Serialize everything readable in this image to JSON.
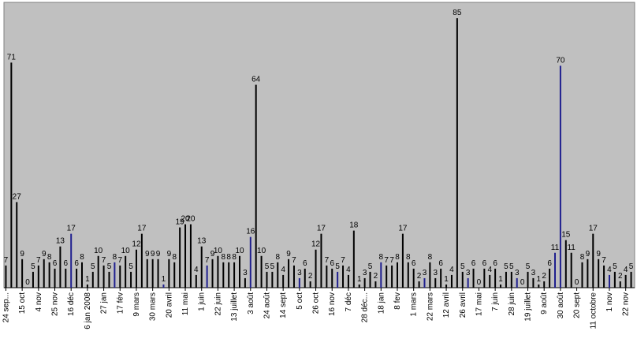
{
  "chart_data": {
    "type": "bar",
    "categories": [
      "24 sep...",
      null,
      null,
      "15 oct",
      null,
      null,
      "4 nov",
      null,
      null,
      "25 nov",
      null,
      null,
      "16 déc",
      null,
      null,
      "6 jan 2008",
      null,
      null,
      "27 jan",
      null,
      null,
      "17 fév",
      null,
      null,
      "9 mars",
      null,
      null,
      "30 mars",
      null,
      null,
      "20 avril",
      null,
      null,
      "11 mai",
      null,
      null,
      "1 juin",
      null,
      null,
      "22 juin",
      null,
      null,
      "13 juillet",
      null,
      null,
      "3 août",
      null,
      null,
      "24 août",
      null,
      null,
      "14 sept",
      null,
      null,
      "5 oct",
      null,
      null,
      "26 oct",
      null,
      null,
      "16 nov",
      null,
      null,
      "7 déc",
      null,
      null,
      "28 déc...",
      null,
      null,
      "18 jan",
      null,
      null,
      "8 fev",
      null,
      null,
      "1 mars",
      null,
      null,
      "22 mars",
      null,
      null,
      "12 avril",
      null,
      null,
      "26 avril",
      null,
      null,
      "17 mai",
      null,
      null,
      "7 juin",
      null,
      null,
      "28 juin",
      null,
      null,
      "19 juillet",
      null,
      null,
      "9 août",
      null,
      null,
      "30 août",
      null,
      null,
      "20 sept",
      null,
      null,
      "11 octobre",
      null,
      null,
      "1 nov",
      null,
      null,
      "22 nov",
      null
    ],
    "values": [
      7,
      71,
      27,
      9,
      0,
      5,
      7,
      9,
      8,
      6,
      13,
      6,
      17,
      6,
      8,
      1,
      5,
      10,
      7,
      5,
      8,
      7,
      10,
      5,
      12,
      17,
      9,
      9,
      9,
      1,
      9,
      8,
      19,
      20,
      20,
      4,
      13,
      7,
      9,
      10,
      8,
      8,
      8,
      10,
      3,
      16,
      64,
      10,
      5,
      5,
      8,
      4,
      9,
      7,
      3,
      6,
      2,
      12,
      17,
      7,
      6,
      5,
      7,
      4,
      18,
      1,
      3,
      5,
      2,
      8,
      7,
      7,
      8,
      17,
      8,
      6,
      2,
      3,
      8,
      3,
      6,
      1,
      4,
      85,
      5,
      3,
      6,
      0,
      6,
      4,
      6,
      1,
      5,
      5,
      3,
      0,
      5,
      3,
      1,
      2,
      6,
      11,
      70,
      15,
      11,
      0,
      8,
      9,
      17,
      9,
      7,
      4,
      5,
      2,
      4,
      5
    ],
    "color": "#000000",
    "highlight_color": "#1f1f8f",
    "highlighted": [
      12,
      20,
      29,
      37,
      45,
      54,
      61,
      69,
      77,
      85,
      94,
      101,
      102,
      111
    ],
    "ylim": [
      0,
      90
    ]
  }
}
